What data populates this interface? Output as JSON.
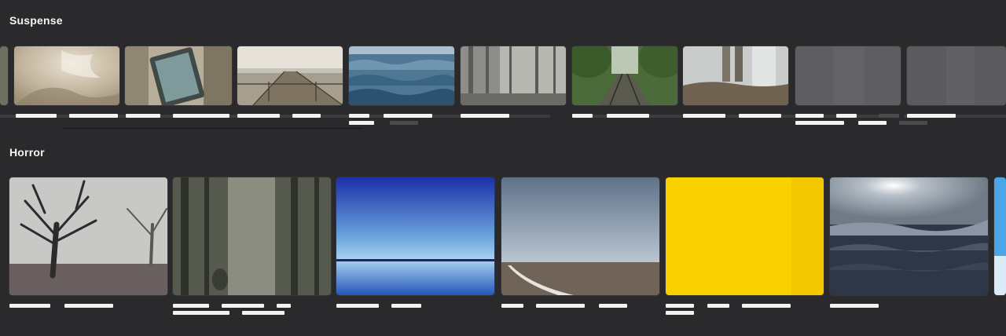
{
  "sections": [
    {
      "title": "Suspense",
      "tiles": [
        {
          "scene": "edge-sliver"
        },
        {
          "scene": "sepia-abstract"
        },
        {
          "scene": "tablet-on-table"
        },
        {
          "scene": "wooden-pier"
        },
        {
          "scene": "ocean-waves"
        },
        {
          "scene": "misty-forest"
        },
        {
          "scene": "railway-tracks"
        },
        {
          "scene": "legs-on-ground"
        },
        {
          "scene": "grey-placeholder"
        },
        {
          "scene": "grey-placeholder"
        }
      ]
    },
    {
      "title": "Horror",
      "tiles": [
        {
          "scene": "foggy-trees"
        },
        {
          "scene": "dark-forest"
        },
        {
          "scene": "blue-horizon"
        },
        {
          "scene": "field-road"
        },
        {
          "scene": "yellow-panel"
        },
        {
          "scene": "sea-waves-sun"
        },
        {
          "scene": "edge-sliver-blue"
        }
      ]
    }
  ]
}
